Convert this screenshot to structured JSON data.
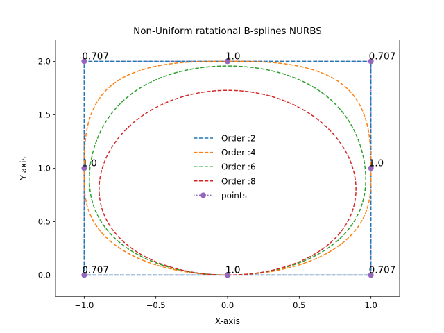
{
  "chart_data": {
    "type": "line",
    "title": "Non-Uniform ratational B-splines NURBS",
    "xlabel": "X-axis",
    "ylabel": "Y-axis",
    "xlim": [
      -1.2,
      1.2
    ],
    "ylim": [
      -0.2,
      2.2
    ],
    "xticks": [
      -1.0,
      -0.5,
      0.0,
      0.5,
      1.0
    ],
    "xtick_labels": [
      "−1.0",
      "−0.5",
      "0.0",
      "0.5",
      "1.0"
    ],
    "yticks": [
      0.0,
      0.5,
      1.0,
      1.5,
      2.0
    ],
    "ytick_labels": [
      "0.0",
      "0.5",
      "1.0",
      "1.5",
      "2.0"
    ],
    "grid": false,
    "legend_position": "center",
    "control_points": {
      "name": "points",
      "color": "#9467bd",
      "style": "dotted-with-circles",
      "x": [
        0.0,
        1.0,
        1.0,
        1.0,
        0.0,
        -1.0,
        -1.0,
        -1.0,
        0.0
      ],
      "y": [
        0.0,
        0.0,
        1.0,
        2.0,
        2.0,
        2.0,
        1.0,
        0.0,
        0.0
      ],
      "weights": [
        1.0,
        0.707,
        1.0,
        0.707,
        1.0,
        0.707,
        1.0,
        0.707,
        1.0
      ],
      "weight_labels": [
        "1.0",
        "0.707",
        "1.0",
        "0.707",
        "1.0",
        "0.707",
        "1.0",
        "0.707",
        "1.0"
      ]
    },
    "series": [
      {
        "name": "Order :2",
        "order": 2,
        "color": "#1f77b4",
        "style": "dashed"
      },
      {
        "name": "Order :4",
        "order": 4,
        "color": "#ff7f0e",
        "style": "dashed"
      },
      {
        "name": "Order :6",
        "order": 6,
        "color": "#2ca02c",
        "style": "dashed"
      },
      {
        "name": "Order :8",
        "order": 8,
        "color": "#d62728",
        "style": "dashed"
      }
    ]
  }
}
